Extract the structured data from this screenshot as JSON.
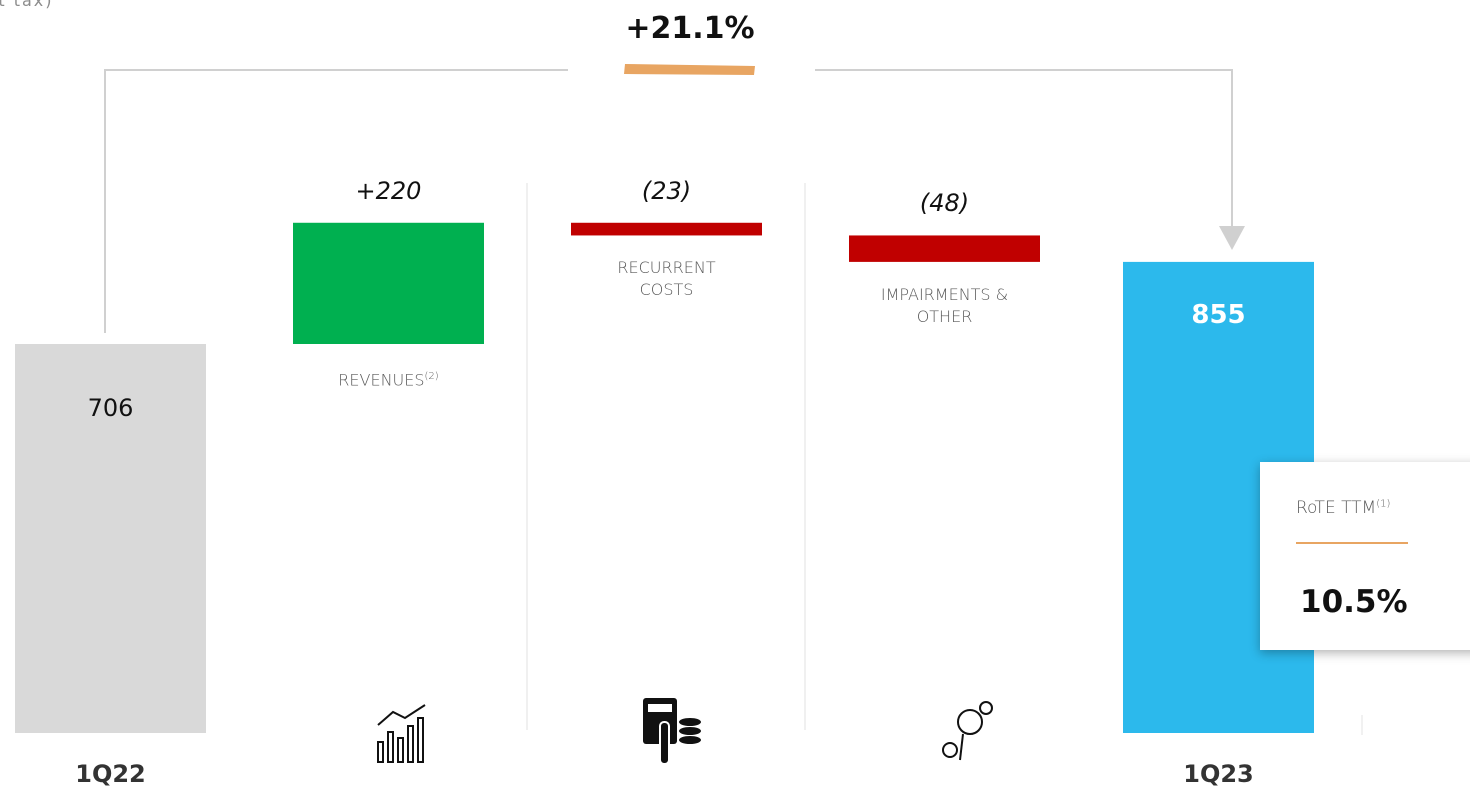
{
  "chart_data": {
    "type": "waterfall",
    "subtitle": "st tax)",
    "categories": [
      "1Q22",
      "REVENUES",
      "RECURRENT COSTS",
      "IMPAIRMENTS & OTHER",
      "1Q23"
    ],
    "category_notes": [
      null,
      "(2)",
      null,
      null,
      null
    ],
    "values": [
      706,
      220,
      -23,
      -48,
      855
    ],
    "value_labels": [
      "706",
      "+220",
      "(23)",
      "(48)",
      "855"
    ],
    "totals": [
      true,
      false,
      false,
      false,
      true
    ],
    "colors": [
      "#d9d9d9",
      "#00b050",
      "#c00000",
      "#c00000",
      "#2cb9ec"
    ],
    "annotation": "+21.1%",
    "callout": {
      "label": "RoTE TTM",
      "note": "(1)",
      "value": "10.5%"
    }
  }
}
